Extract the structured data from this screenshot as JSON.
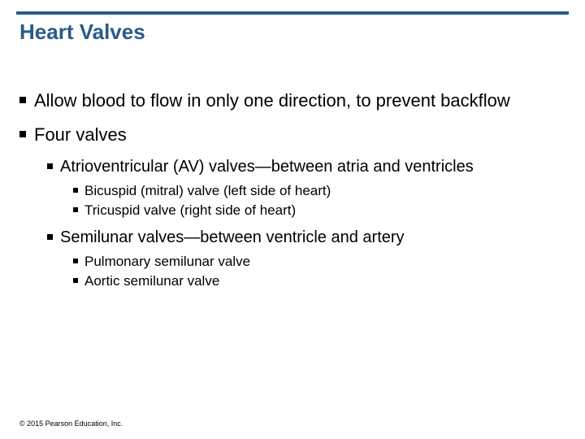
{
  "colors": {
    "rule": "#2a5a8a",
    "title": "#2a5a8a",
    "text": "#000000",
    "background": "#ffffff",
    "bullet": "#000000"
  },
  "typography": {
    "title_fontsize": 26,
    "lvl1_fontsize": 22,
    "lvl2_fontsize": 20,
    "lvl3_fontsize": 17,
    "footer_fontsize": 9,
    "font_family": "Arial"
  },
  "title": "Heart Valves",
  "bullets": {
    "b1": "Allow blood to flow in only one direction, to prevent backflow",
    "b2": "Four valves",
    "b2_1": "Atrioventricular (AV) valves—between atria and ventricles",
    "b2_1_1": "Bicuspid (mitral) valve (left side of heart)",
    "b2_1_2": "Tricuspid valve (right side of heart)",
    "b2_2": "Semilunar valves—between ventricle and artery",
    "b2_2_1": "Pulmonary semilunar valve",
    "b2_2_2": "Aortic semilunar valve"
  },
  "footer": "© 2015 Pearson Education, Inc."
}
